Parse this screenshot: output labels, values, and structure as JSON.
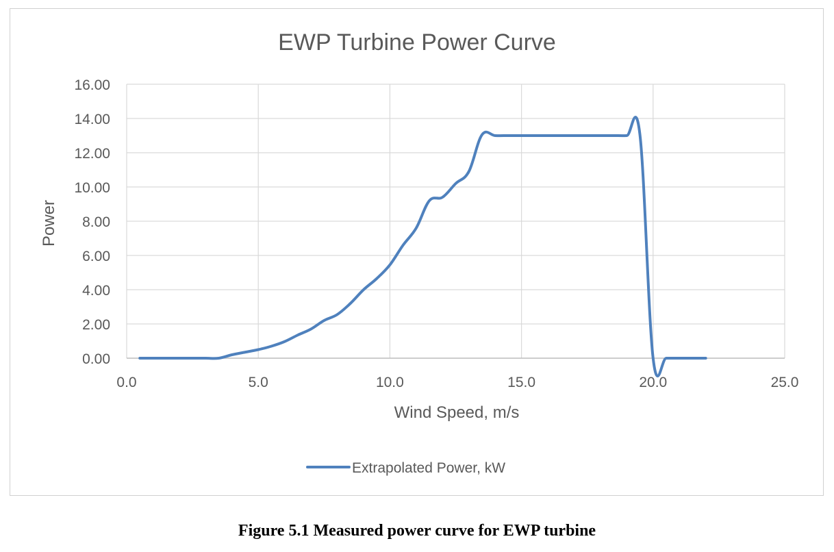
{
  "chart_data": {
    "type": "line",
    "title": "EWP Turbine Power Curve",
    "xlabel": "Wind Speed, m/s",
    "ylabel": "Power",
    "xlim": [
      0,
      25
    ],
    "ylim": [
      0,
      16
    ],
    "x_ticks": [
      "0.0",
      "5.0",
      "10.0",
      "15.0",
      "20.0",
      "25.0"
    ],
    "y_ticks": [
      "0.00",
      "2.00",
      "4.00",
      "6.00",
      "8.00",
      "10.00",
      "12.00",
      "14.00",
      "16.00"
    ],
    "grid": true,
    "legend_position": "bottom",
    "series": [
      {
        "name": "Extrapolated Power, kW",
        "color": "#4f81bd",
        "x": [
          0.5,
          1.0,
          1.5,
          2.0,
          2.5,
          3.0,
          3.5,
          4.0,
          4.5,
          5.0,
          5.5,
          6.0,
          6.5,
          7.0,
          7.5,
          8.0,
          8.5,
          9.0,
          9.5,
          10.0,
          10.5,
          11.0,
          11.5,
          12.0,
          12.5,
          13.0,
          13.5,
          14.0,
          14.5,
          15.0,
          15.5,
          16.0,
          16.5,
          17.0,
          17.5,
          18.0,
          18.5,
          19.0,
          19.5,
          20.0,
          20.5,
          21.0,
          21.5,
          22.0
        ],
        "y": [
          0.0,
          0.0,
          0.0,
          0.0,
          0.0,
          0.0,
          0.0,
          0.2,
          0.35,
          0.5,
          0.7,
          0.97,
          1.35,
          1.7,
          2.2,
          2.55,
          3.2,
          4.0,
          4.65,
          5.45,
          6.6,
          7.6,
          9.2,
          9.4,
          10.2,
          10.9,
          13.05,
          13.0,
          13.0,
          13.0,
          13.0,
          13.0,
          13.0,
          13.0,
          13.0,
          13.0,
          13.0,
          13.0,
          13.05,
          0.0,
          0.0,
          0.0,
          0.0,
          0.0
        ]
      }
    ]
  },
  "caption": "Figure 5.1 Measured power curve for EWP turbine"
}
